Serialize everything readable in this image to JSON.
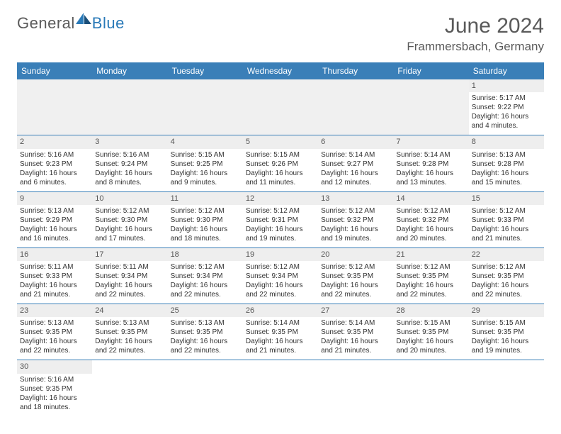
{
  "brand": {
    "part1": "General",
    "part2": "Blue"
  },
  "title": "June 2024",
  "location": "Frammersbach, Germany",
  "colors": {
    "header_bg": "#3a7fb8",
    "header_text": "#ffffff",
    "daynum_bg": "#eeeeee",
    "border": "#3a7fb8",
    "text": "#333333",
    "brand_gray": "#5a5a5a",
    "brand_blue": "#2a7ab8"
  },
  "weekdays": [
    "Sunday",
    "Monday",
    "Tuesday",
    "Wednesday",
    "Thursday",
    "Friday",
    "Saturday"
  ],
  "weeks": [
    [
      null,
      null,
      null,
      null,
      null,
      null,
      {
        "d": "1",
        "sr": "Sunrise: 5:17 AM",
        "ss": "Sunset: 9:22 PM",
        "dl1": "Daylight: 16 hours",
        "dl2": "and 4 minutes."
      }
    ],
    [
      {
        "d": "2",
        "sr": "Sunrise: 5:16 AM",
        "ss": "Sunset: 9:23 PM",
        "dl1": "Daylight: 16 hours",
        "dl2": "and 6 minutes."
      },
      {
        "d": "3",
        "sr": "Sunrise: 5:16 AM",
        "ss": "Sunset: 9:24 PM",
        "dl1": "Daylight: 16 hours",
        "dl2": "and 8 minutes."
      },
      {
        "d": "4",
        "sr": "Sunrise: 5:15 AM",
        "ss": "Sunset: 9:25 PM",
        "dl1": "Daylight: 16 hours",
        "dl2": "and 9 minutes."
      },
      {
        "d": "5",
        "sr": "Sunrise: 5:15 AM",
        "ss": "Sunset: 9:26 PM",
        "dl1": "Daylight: 16 hours",
        "dl2": "and 11 minutes."
      },
      {
        "d": "6",
        "sr": "Sunrise: 5:14 AM",
        "ss": "Sunset: 9:27 PM",
        "dl1": "Daylight: 16 hours",
        "dl2": "and 12 minutes."
      },
      {
        "d": "7",
        "sr": "Sunrise: 5:14 AM",
        "ss": "Sunset: 9:28 PM",
        "dl1": "Daylight: 16 hours",
        "dl2": "and 13 minutes."
      },
      {
        "d": "8",
        "sr": "Sunrise: 5:13 AM",
        "ss": "Sunset: 9:28 PM",
        "dl1": "Daylight: 16 hours",
        "dl2": "and 15 minutes."
      }
    ],
    [
      {
        "d": "9",
        "sr": "Sunrise: 5:13 AM",
        "ss": "Sunset: 9:29 PM",
        "dl1": "Daylight: 16 hours",
        "dl2": "and 16 minutes."
      },
      {
        "d": "10",
        "sr": "Sunrise: 5:12 AM",
        "ss": "Sunset: 9:30 PM",
        "dl1": "Daylight: 16 hours",
        "dl2": "and 17 minutes."
      },
      {
        "d": "11",
        "sr": "Sunrise: 5:12 AM",
        "ss": "Sunset: 9:30 PM",
        "dl1": "Daylight: 16 hours",
        "dl2": "and 18 minutes."
      },
      {
        "d": "12",
        "sr": "Sunrise: 5:12 AM",
        "ss": "Sunset: 9:31 PM",
        "dl1": "Daylight: 16 hours",
        "dl2": "and 19 minutes."
      },
      {
        "d": "13",
        "sr": "Sunrise: 5:12 AM",
        "ss": "Sunset: 9:32 PM",
        "dl1": "Daylight: 16 hours",
        "dl2": "and 19 minutes."
      },
      {
        "d": "14",
        "sr": "Sunrise: 5:12 AM",
        "ss": "Sunset: 9:32 PM",
        "dl1": "Daylight: 16 hours",
        "dl2": "and 20 minutes."
      },
      {
        "d": "15",
        "sr": "Sunrise: 5:12 AM",
        "ss": "Sunset: 9:33 PM",
        "dl1": "Daylight: 16 hours",
        "dl2": "and 21 minutes."
      }
    ],
    [
      {
        "d": "16",
        "sr": "Sunrise: 5:11 AM",
        "ss": "Sunset: 9:33 PM",
        "dl1": "Daylight: 16 hours",
        "dl2": "and 21 minutes."
      },
      {
        "d": "17",
        "sr": "Sunrise: 5:11 AM",
        "ss": "Sunset: 9:34 PM",
        "dl1": "Daylight: 16 hours",
        "dl2": "and 22 minutes."
      },
      {
        "d": "18",
        "sr": "Sunrise: 5:12 AM",
        "ss": "Sunset: 9:34 PM",
        "dl1": "Daylight: 16 hours",
        "dl2": "and 22 minutes."
      },
      {
        "d": "19",
        "sr": "Sunrise: 5:12 AM",
        "ss": "Sunset: 9:34 PM",
        "dl1": "Daylight: 16 hours",
        "dl2": "and 22 minutes."
      },
      {
        "d": "20",
        "sr": "Sunrise: 5:12 AM",
        "ss": "Sunset: 9:35 PM",
        "dl1": "Daylight: 16 hours",
        "dl2": "and 22 minutes."
      },
      {
        "d": "21",
        "sr": "Sunrise: 5:12 AM",
        "ss": "Sunset: 9:35 PM",
        "dl1": "Daylight: 16 hours",
        "dl2": "and 22 minutes."
      },
      {
        "d": "22",
        "sr": "Sunrise: 5:12 AM",
        "ss": "Sunset: 9:35 PM",
        "dl1": "Daylight: 16 hours",
        "dl2": "and 22 minutes."
      }
    ],
    [
      {
        "d": "23",
        "sr": "Sunrise: 5:13 AM",
        "ss": "Sunset: 9:35 PM",
        "dl1": "Daylight: 16 hours",
        "dl2": "and 22 minutes."
      },
      {
        "d": "24",
        "sr": "Sunrise: 5:13 AM",
        "ss": "Sunset: 9:35 PM",
        "dl1": "Daylight: 16 hours",
        "dl2": "and 22 minutes."
      },
      {
        "d": "25",
        "sr": "Sunrise: 5:13 AM",
        "ss": "Sunset: 9:35 PM",
        "dl1": "Daylight: 16 hours",
        "dl2": "and 22 minutes."
      },
      {
        "d": "26",
        "sr": "Sunrise: 5:14 AM",
        "ss": "Sunset: 9:35 PM",
        "dl1": "Daylight: 16 hours",
        "dl2": "and 21 minutes."
      },
      {
        "d": "27",
        "sr": "Sunrise: 5:14 AM",
        "ss": "Sunset: 9:35 PM",
        "dl1": "Daylight: 16 hours",
        "dl2": "and 21 minutes."
      },
      {
        "d": "28",
        "sr": "Sunrise: 5:15 AM",
        "ss": "Sunset: 9:35 PM",
        "dl1": "Daylight: 16 hours",
        "dl2": "and 20 minutes."
      },
      {
        "d": "29",
        "sr": "Sunrise: 5:15 AM",
        "ss": "Sunset: 9:35 PM",
        "dl1": "Daylight: 16 hours",
        "dl2": "and 19 minutes."
      }
    ],
    [
      {
        "d": "30",
        "sr": "Sunrise: 5:16 AM",
        "ss": "Sunset: 9:35 PM",
        "dl1": "Daylight: 16 hours",
        "dl2": "and 18 minutes."
      },
      null,
      null,
      null,
      null,
      null,
      null
    ]
  ]
}
